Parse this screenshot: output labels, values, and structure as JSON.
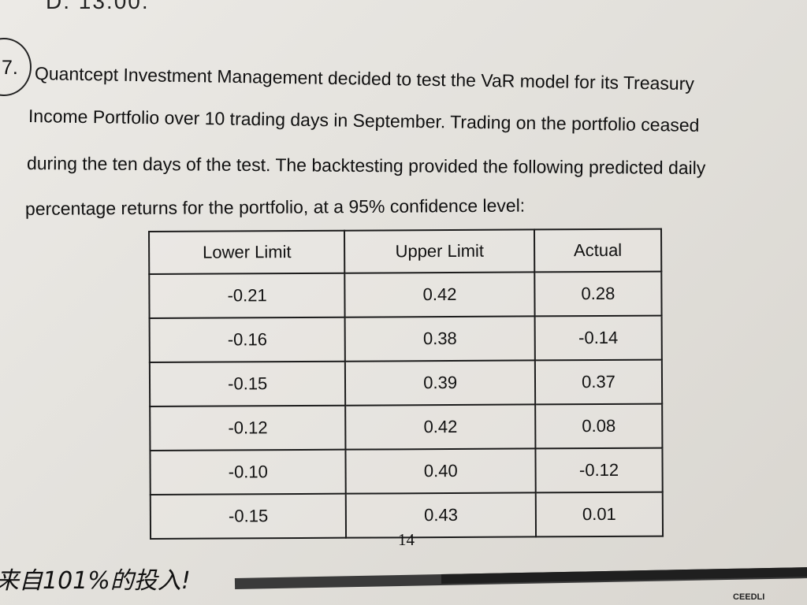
{
  "previous_option": {
    "text": "D.   13.00."
  },
  "question": {
    "number": "7.",
    "lines": [
      "Quantcept Investment Management decided to test the VaR model for its Treasury",
      "Income Portfolio over 10 trading days in September. Trading on the portfolio ceased",
      "during the ten days of the test. The backtesting provided the following predicted daily",
      "percentage returns for the portfolio, at a 95% confidence level:"
    ]
  },
  "table": {
    "headers": [
      "Lower Limit",
      "Upper Limit",
      "Actual"
    ],
    "rows": [
      [
        "-0.21",
        "0.42",
        "0.28"
      ],
      [
        "-0.16",
        "0.38",
        "-0.14"
      ],
      [
        "-0.15",
        "0.39",
        "0.37"
      ],
      [
        "-0.12",
        "0.42",
        "0.08"
      ],
      [
        "-0.10",
        "0.40",
        "-0.12"
      ],
      [
        "-0.15",
        "0.43",
        "0.01"
      ]
    ]
  },
  "page_number": "14",
  "footer": {
    "slogan": "来自101%的投入!",
    "corner": "CEEDLI"
  }
}
